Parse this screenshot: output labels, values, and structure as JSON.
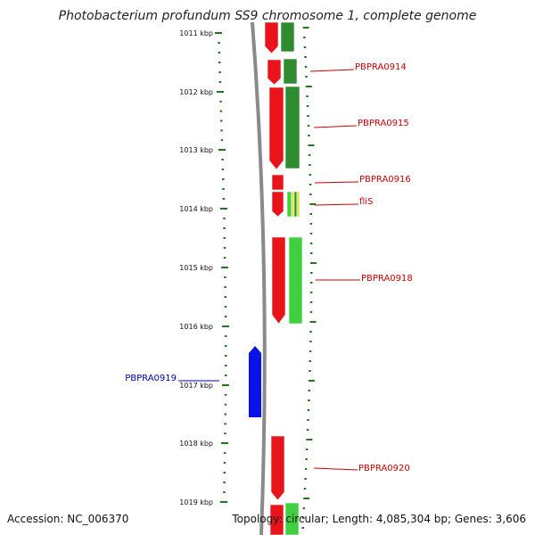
{
  "title": "Photobacterium profundum SS9 chromosome 1, complete genome",
  "footer": {
    "accession": "Accession: NC_006370",
    "summary": "Topology: circular; Length: 4,085,304 bp; Genes: 3,606"
  },
  "colors": {
    "forward_cds": "#e8141a",
    "forward_cds_dark": "#b30000",
    "reverse_cds_dark": "#2e8b2e",
    "reverse_cds_light": "#3fcf3f",
    "flis_yellow": "#d8e636",
    "reverse_gene": "#0a12e8",
    "backbone": "#8a8a8a",
    "tick": "#1c7a1c",
    "label_red": "#cc0000",
    "label_blue": "#0000aa"
  },
  "kbp_labels": [
    "1011 kbp",
    "1012 kbp",
    "1013 kbp",
    "1014 kbp",
    "1015 kbp",
    "1016 kbp",
    "1017 kbp",
    "1018 kbp",
    "1019 kbp"
  ],
  "genes": [
    {
      "label": "PBPRA0914",
      "strand": "+"
    },
    {
      "label": "PBPRA0915",
      "strand": "+"
    },
    {
      "label": "PBPRA0916",
      "strand": "+"
    },
    {
      "label": "fliS",
      "strand": "+"
    },
    {
      "label": "PBPRA0918",
      "strand": "+"
    },
    {
      "label": "PBPRA0919",
      "strand": "-"
    },
    {
      "label": "PBPRA0920",
      "strand": "+"
    }
  ]
}
